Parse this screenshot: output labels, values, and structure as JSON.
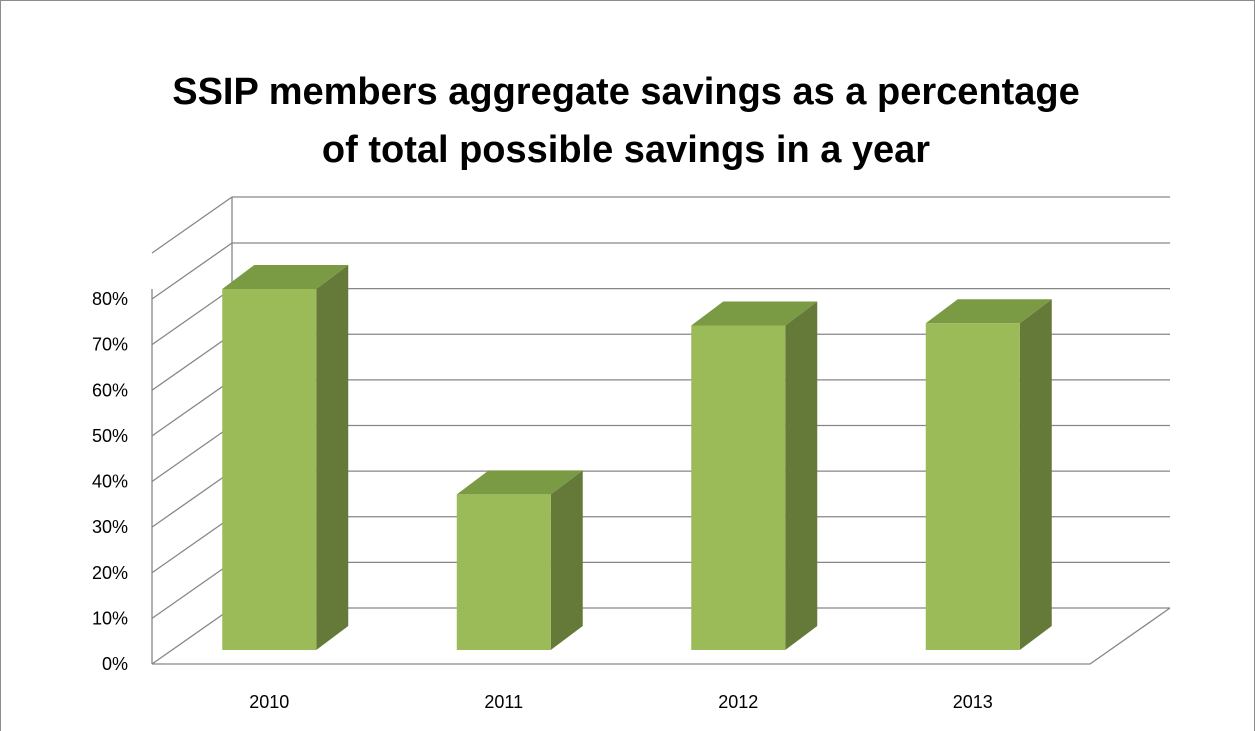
{
  "chart_data": {
    "type": "bar",
    "title": "SSIP members aggregate savings as a percentage of total possible savings in a year",
    "categories": [
      "2010",
      "2011",
      "2012",
      "2013"
    ],
    "values": [
      80,
      35,
      72,
      72.5
    ],
    "yticks": [
      "0%",
      "10%",
      "20%",
      "30%",
      "40%",
      "50%",
      "60%",
      "70%",
      "80%"
    ],
    "ylim": [
      0,
      80
    ],
    "grid": true,
    "legend": "none",
    "three_d": true,
    "colors": {
      "bar_front": "#9bbb59",
      "bar_top": "#7a9a44",
      "bar_side": "#657a38",
      "grid": "#868686"
    }
  }
}
